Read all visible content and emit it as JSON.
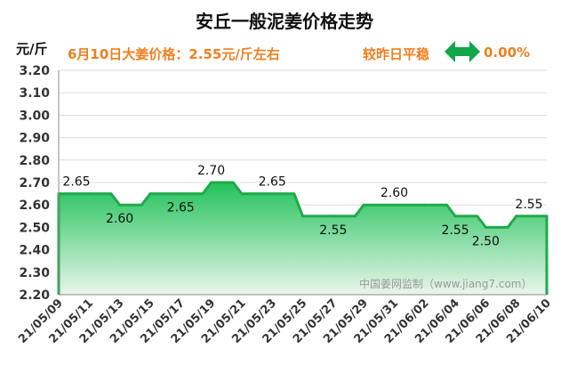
{
  "header": {
    "title": "安丘一般泥姜价格走势",
    "unit": "元/斤",
    "price_note": "6月10日大姜价格：2.55元/斤左右",
    "change_label": "较昨日平稳",
    "change_value": "0.00%",
    "arrow_icon": "double-arrow-icon",
    "arrow_color": "#12a64a"
  },
  "watermark": "中国姜网监制（www.jiang7.com）",
  "colors": {
    "line": "#1faa4a",
    "fill_top": "#22c25a",
    "fill_bottom": "#eaf6ec",
    "grid": "#dddddd"
  },
  "chart_data": {
    "type": "area",
    "x": [
      "21/05/09",
      "21/05/11",
      "21/05/13",
      "21/05/15",
      "21/05/17",
      "21/05/19",
      "21/05/21",
      "21/05/23",
      "21/05/25",
      "21/05/27",
      "21/05/29",
      "21/05/31",
      "21/06/02",
      "21/06/04",
      "21/06/06",
      "21/06/08",
      "21/06/10"
    ],
    "values": [
      2.65,
      2.65,
      2.6,
      2.65,
      2.65,
      2.7,
      2.65,
      2.65,
      2.55,
      2.55,
      2.6,
      2.6,
      2.6,
      2.55,
      2.5,
      2.55,
      2.55
    ],
    "data_labels": [
      {
        "index": 0,
        "text": "2.65"
      },
      {
        "index": 2,
        "text": "2.60"
      },
      {
        "index": 4,
        "text": "2.65"
      },
      {
        "index": 5,
        "text": "2.70"
      },
      {
        "index": 7,
        "text": "2.65"
      },
      {
        "index": 9,
        "text": "2.55"
      },
      {
        "index": 11,
        "text": "2.60"
      },
      {
        "index": 13,
        "text": "2.55"
      },
      {
        "index": 14,
        "text": "2.50"
      },
      {
        "index": 16,
        "text": "2.55"
      }
    ],
    "ylim": [
      2.2,
      3.2
    ],
    "y_ticks": [
      "2.20",
      "2.30",
      "2.40",
      "2.50",
      "2.60",
      "2.70",
      "2.80",
      "2.90",
      "3.00",
      "3.10",
      "3.20"
    ],
    "grid": true,
    "legend": "none"
  }
}
